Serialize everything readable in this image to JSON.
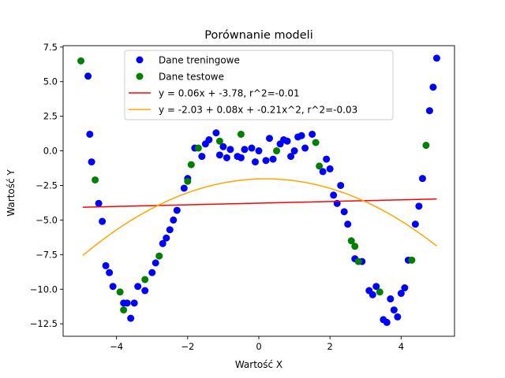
{
  "chart_data": {
    "type": "scatter",
    "title": "Porównanie modeli",
    "xlabel": "Wartość X",
    "ylabel": "Wartość Y",
    "xlim": [
      -5.5,
      5.5
    ],
    "ylim": [
      -13.4,
      7.6
    ],
    "xticks": [
      -4,
      -2,
      0,
      2,
      4
    ],
    "xtick_labels": [
      "−4",
      "−2",
      "0",
      "2",
      "4"
    ],
    "yticks": [
      -12.5,
      -10.0,
      -7.5,
      -5.0,
      -2.5,
      0.0,
      2.5,
      5.0,
      7.5
    ],
    "ytick_labels": [
      "−12.5",
      "−10.0",
      "−7.5",
      "−5.0",
      "−2.5",
      "0.0",
      "2.5",
      "5.0",
      "7.5"
    ],
    "grid": false,
    "legend_position": "top-center",
    "series": [
      {
        "name": "Dane treningowe",
        "kind": "scatter",
        "color": "#0000ff",
        "points": [
          [
            -4.8,
            5.4
          ],
          [
            -4.75,
            1.2
          ],
          [
            -4.7,
            -0.8
          ],
          [
            -4.5,
            -3.8
          ],
          [
            -4.4,
            -5.1
          ],
          [
            -4.3,
            -8.3
          ],
          [
            -4.2,
            -8.8
          ],
          [
            -4.1,
            -9.8
          ],
          [
            -3.8,
            -11.0
          ],
          [
            -3.7,
            -11.0
          ],
          [
            -3.5,
            -11.0
          ],
          [
            -3.6,
            -12.1
          ],
          [
            -3.4,
            -9.8
          ],
          [
            -3.2,
            -10.1
          ],
          [
            -3.0,
            -8.8
          ],
          [
            -2.9,
            -8.1
          ],
          [
            -2.7,
            -6.7
          ],
          [
            -2.6,
            -6.3
          ],
          [
            -2.5,
            -5.7
          ],
          [
            -2.4,
            -5.0
          ],
          [
            -2.3,
            -4.3
          ],
          [
            -2.1,
            -2.7
          ],
          [
            -2.0,
            -2.0
          ],
          [
            -1.8,
            0.2
          ],
          [
            -1.6,
            -0.4
          ],
          [
            -1.5,
            0.5
          ],
          [
            -1.4,
            0.8
          ],
          [
            -1.2,
            1.3
          ],
          [
            -1.1,
            -0.3
          ],
          [
            -1.0,
            0.3
          ],
          [
            -0.9,
            -0.5
          ],
          [
            -0.8,
            0.1
          ],
          [
            -0.6,
            -0.4
          ],
          [
            -0.5,
            -0.5
          ],
          [
            -0.4,
            0.1
          ],
          [
            -0.2,
            0.2
          ],
          [
            -0.1,
            -0.8
          ],
          [
            0.0,
            0.0
          ],
          [
            0.2,
            -0.7
          ],
          [
            0.3,
            0.9
          ],
          [
            0.4,
            -0.6
          ],
          [
            0.6,
            0.5
          ],
          [
            0.7,
            0.8
          ],
          [
            0.8,
            0.7
          ],
          [
            0.9,
            -0.4
          ],
          [
            1.0,
            0.0
          ],
          [
            1.1,
            1.0
          ],
          [
            1.2,
            1.1
          ],
          [
            1.3,
            0.2
          ],
          [
            1.5,
            1.2
          ],
          [
            1.8,
            -1.5
          ],
          [
            1.9,
            -0.6
          ],
          [
            2.0,
            -1.3
          ],
          [
            2.1,
            -3.2
          ],
          [
            2.3,
            -2.5
          ],
          [
            2.2,
            -3.8
          ],
          [
            2.4,
            -4.4
          ],
          [
            2.5,
            -5.3
          ],
          [
            2.7,
            -7.8
          ],
          [
            2.9,
            -8.0
          ],
          [
            3.1,
            -10.1
          ],
          [
            3.2,
            -10.4
          ],
          [
            3.3,
            -9.8
          ],
          [
            3.5,
            -12.2
          ],
          [
            3.6,
            -12.4
          ],
          [
            3.7,
            -10.7
          ],
          [
            3.8,
            -11.5
          ],
          [
            3.9,
            -12.0
          ],
          [
            4.0,
            -10.3
          ],
          [
            4.1,
            -9.9
          ],
          [
            4.2,
            -7.9
          ],
          [
            4.4,
            -5.3
          ],
          [
            4.5,
            -4.0
          ],
          [
            4.6,
            -2.0
          ],
          [
            4.8,
            2.9
          ],
          [
            4.9,
            4.6
          ],
          [
            5.0,
            6.7
          ]
        ]
      },
      {
        "name": "Dane testowe",
        "kind": "scatter",
        "color": "#008000",
        "points": [
          [
            -5.0,
            6.5
          ],
          [
            -4.6,
            -2.1
          ],
          [
            -3.9,
            -10.2
          ],
          [
            -3.8,
            -11.5
          ],
          [
            -3.2,
            -9.3
          ],
          [
            -2.8,
            -7.6
          ],
          [
            -2.0,
            -2.2
          ],
          [
            -1.9,
            -1.0
          ],
          [
            -1.7,
            0.2
          ],
          [
            -1.1,
            0.7
          ],
          [
            -0.5,
            1.2
          ],
          [
            0.5,
            0.0
          ],
          [
            1.6,
            0.6
          ],
          [
            1.7,
            -1.1
          ],
          [
            2.6,
            -6.5
          ],
          [
            2.7,
            -6.9
          ],
          [
            2.8,
            -8.0
          ],
          [
            3.4,
            -10.2
          ],
          [
            4.3,
            -7.9
          ],
          [
            4.7,
            0.4
          ]
        ]
      },
      {
        "name": "y = 0.06x + -3.78, r^2=-0.01",
        "kind": "line",
        "color": "#ff0000",
        "intercept": -3.78,
        "slope": 0.06
      },
      {
        "name": "y = -2.03 + 0.08x + -0.21x^2, r^2=-0.03",
        "kind": "line",
        "color": "#ffa500",
        "coefficients": [
          -2.03,
          0.08,
          -0.21
        ]
      }
    ],
    "line_x_range": [
      -4.95,
      5.0
    ]
  }
}
